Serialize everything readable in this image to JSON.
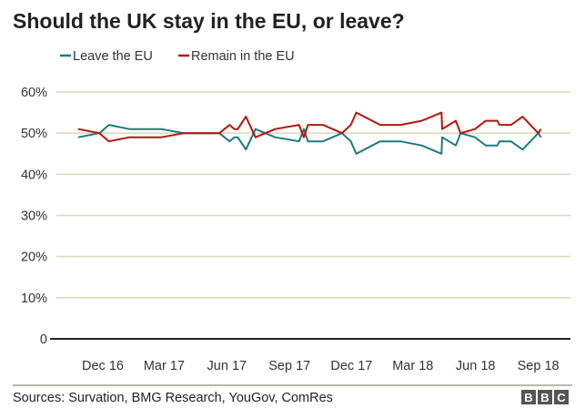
{
  "chart_data": {
    "type": "line",
    "title": "Should the UK stay in the EU, or leave?",
    "xlabel": "",
    "ylabel": "",
    "ylim": [
      0,
      60
    ],
    "xlim": [
      "2016-10-01",
      "2018-11-05"
    ],
    "grid": true,
    "legend_position": "top-left",
    "y_ticks": [
      {
        "value": 0,
        "label": "0"
      },
      {
        "value": 10,
        "label": "10%"
      },
      {
        "value": 20,
        "label": "20%"
      },
      {
        "value": 30,
        "label": "30%"
      },
      {
        "value": 40,
        "label": "40%"
      },
      {
        "value": 50,
        "label": "50%"
      },
      {
        "value": 60,
        "label": "60%"
      }
    ],
    "x_ticks": [
      {
        "date": "2016-12-01",
        "label": "Dec 16"
      },
      {
        "date": "2017-03-01",
        "label": "Mar 17"
      },
      {
        "date": "2017-06-01",
        "label": "Jun 17"
      },
      {
        "date": "2017-09-01",
        "label": "Sep 17"
      },
      {
        "date": "2017-12-01",
        "label": "Dec 17"
      },
      {
        "date": "2018-03-01",
        "label": "Mar 18"
      },
      {
        "date": "2018-06-01",
        "label": "Jun 18"
      },
      {
        "date": "2018-09-01",
        "label": "Sep 18"
      }
    ],
    "x": [
      "2016-10-26",
      "2016-11-26",
      "2016-12-10",
      "2017-01-09",
      "2017-02-25",
      "2017-03-30",
      "2017-05-21",
      "2017-06-05",
      "2017-06-12",
      "2017-06-17",
      "2017-06-29",
      "2017-07-13",
      "2017-08-11",
      "2017-09-15",
      "2017-09-22",
      "2017-09-28",
      "2017-10-04",
      "2017-10-20",
      "2017-11-17",
      "2017-11-30",
      "2017-12-08",
      "2018-01-12",
      "2018-02-11",
      "2018-03-14",
      "2018-04-12",
      "2018-04-13",
      "2018-05-03",
      "2018-05-10",
      "2018-05-31",
      "2018-06-16",
      "2018-07-03",
      "2018-07-06",
      "2018-07-23",
      "2018-08-09",
      "2018-09-01",
      "2018-09-05"
    ],
    "series": [
      {
        "name": "Leave the EU",
        "color": "#1c7b80",
        "values": [
          49,
          50,
          52,
          51,
          51,
          50,
          50,
          48,
          49,
          49,
          46,
          51,
          49,
          48,
          51,
          48,
          48,
          48,
          50,
          48,
          45,
          48,
          48,
          47,
          45,
          49,
          47,
          50,
          49,
          47,
          47,
          48,
          48,
          46,
          50,
          49
        ]
      },
      {
        "name": "Remain in the EU",
        "color": "#b3170f",
        "values": [
          51,
          50,
          48,
          49,
          49,
          50,
          50,
          52,
          51,
          51,
          54,
          49,
          51,
          52,
          49,
          52,
          52,
          52,
          50,
          52,
          55,
          52,
          52,
          53,
          55,
          51,
          53,
          50,
          51,
          53,
          53,
          52,
          52,
          54,
          50,
          51
        ]
      }
    ]
  },
  "footer": {
    "source": "Sources: Survation, BMG Research, YouGov, ComRes",
    "logo": [
      "B",
      "B",
      "C"
    ]
  },
  "colors": {
    "grid": "#ddd8b8",
    "axis": "#222222",
    "footer_rule": "#a39f94"
  }
}
